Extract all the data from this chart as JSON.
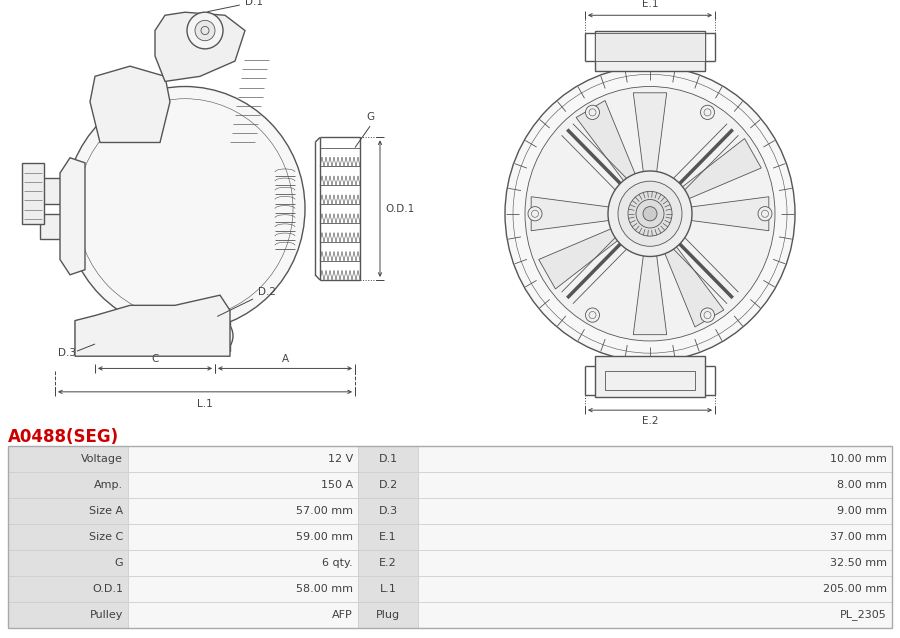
{
  "title": "A0488(SEG)",
  "title_color": "#cc0000",
  "bg_color": "#ffffff",
  "left_labels": [
    "Voltage",
    "Amp.",
    "Size A",
    "Size C",
    "G",
    "O.D.1",
    "Pulley"
  ],
  "left_values": [
    "12 V",
    "150 A",
    "57.00 mm",
    "59.00 mm",
    "6 qty.",
    "58.00 mm",
    "AFP"
  ],
  "right_labels": [
    "D.1",
    "D.2",
    "D.3",
    "E.1",
    "E.2",
    "L.1",
    "Plug"
  ],
  "right_values": [
    "10.00 mm",
    "8.00 mm",
    "9.00 mm",
    "37.00 mm",
    "32.50 mm",
    "205.00 mm",
    "PL_2305"
  ],
  "font_size_title": 12,
  "font_size_table": 8.0,
  "lc": "#555555",
  "dim_color": "#444444"
}
